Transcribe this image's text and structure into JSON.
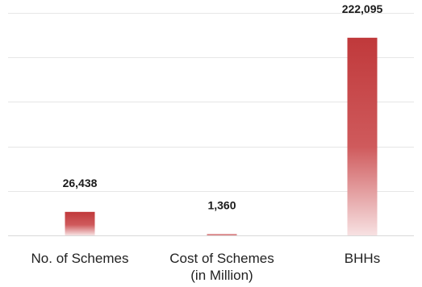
{
  "chart_data": {
    "type": "bar",
    "categories": [
      [
        "No. of Schemes"
      ],
      [
        "Cost of Schemes",
        "(in Million)"
      ],
      [
        "BHHs"
      ]
    ],
    "values": [
      26438,
      1360,
      222095
    ],
    "value_labels": [
      "26,438",
      "1,360",
      "222,095"
    ],
    "title": "",
    "xlabel": "",
    "ylabel": "",
    "ylim": [
      0,
      250000
    ],
    "grid": true,
    "legend": "none",
    "bar_color_top": "#c0393b",
    "bar_color_bottom": "#f7e1e2"
  }
}
